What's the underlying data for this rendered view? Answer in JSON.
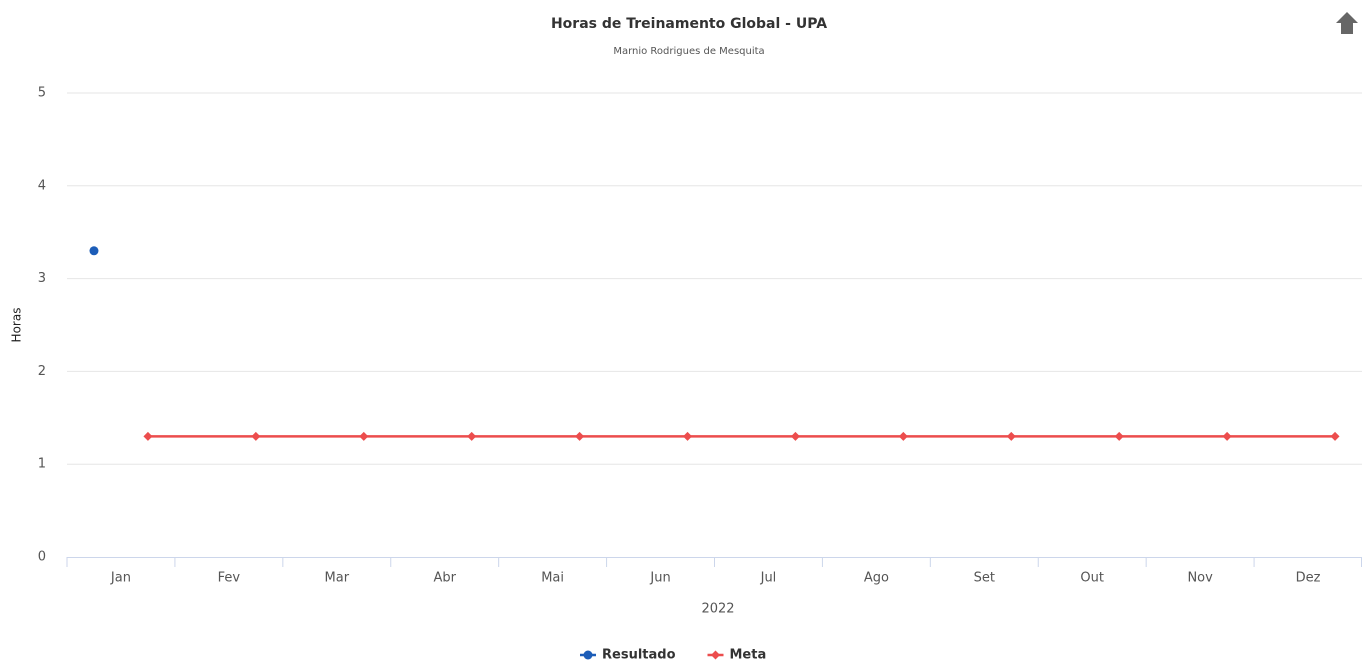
{
  "chart_data": {
    "type": "line",
    "title": "Horas de Treinamento Global - UPA",
    "subtitle": "Marnio Rodrigues de Mesquita",
    "x_label": "2022",
    "y_label": "Horas",
    "categories": [
      "Jan",
      "Fev",
      "Mar",
      "Abr",
      "Mai",
      "Jun",
      "Jul",
      "Ago",
      "Set",
      "Out",
      "Nov",
      "Dez"
    ],
    "series": [
      {
        "name": "Resultado",
        "color": "#1c5db8",
        "values": [
          3.3,
          null,
          null,
          null,
          null,
          null,
          null,
          null,
          null,
          null,
          null,
          null
        ]
      },
      {
        "name": "Meta",
        "color": "#ec4d4d",
        "values": [
          1.3,
          1.3,
          1.3,
          1.3,
          1.3,
          1.3,
          1.3,
          1.3,
          1.3,
          1.3,
          1.3,
          1.3
        ]
      }
    ],
    "ylim": [
      0,
      5
    ],
    "yticks": [
      0,
      1,
      2,
      3,
      4,
      5
    ],
    "grid": true,
    "legend": "bottom"
  }
}
